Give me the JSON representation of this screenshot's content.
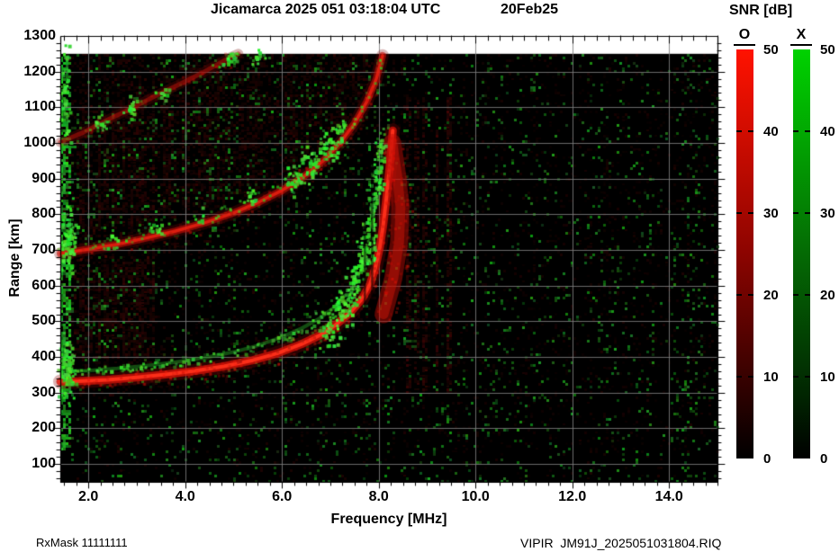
{
  "title": {
    "left": "Jicamarca 2025 051 03:18:04 UTC",
    "right": "20Feb25"
  },
  "footer": {
    "left": "RxMask 11111111",
    "right": "VIPIR  JM91J_2025051031804.RIQ"
  },
  "chart_data": {
    "type": "heatmap",
    "title": "Jicamarca 2025 051 03:18:04 UTC  20Feb25",
    "xlabel": "Frequency [MHz]",
    "ylabel": "Range [km]",
    "xlim": [
      1.42,
      15.0
    ],
    "ylim": [
      50,
      1300
    ],
    "grid": {
      "color": "#7e7e7e",
      "x_every_mhz": 2,
      "y_every_km": 100
    },
    "background": "#000000",
    "x_ticks": [
      {
        "v": 2,
        "label": "2.0"
      },
      {
        "v": 4,
        "label": "4.0"
      },
      {
        "v": 6,
        "label": "6.0"
      },
      {
        "v": 8,
        "label": "8.0"
      },
      {
        "v": 10,
        "label": "10.0"
      },
      {
        "v": 12,
        "label": "12.0"
      },
      {
        "v": 14,
        "label": "14.0"
      }
    ],
    "y_ticks": [
      {
        "v": 1300,
        "label": "1300"
      },
      {
        "v": 1200,
        "label": "1200"
      },
      {
        "v": 1100,
        "label": "1100"
      },
      {
        "v": 1000,
        "label": "1000"
      },
      {
        "v": 900,
        "label": "900"
      },
      {
        "v": 800,
        "label": "800"
      },
      {
        "v": 700,
        "label": "700"
      },
      {
        "v": 600,
        "label": "600"
      },
      {
        "v": 500,
        "label": "500"
      },
      {
        "v": 400,
        "label": "400"
      },
      {
        "v": 300,
        "label": "300"
      },
      {
        "v": 200,
        "label": "200"
      },
      {
        "v": 100,
        "label": "100"
      }
    ],
    "colorbar": {
      "title": "SNR [dB]",
      "o_label": "O",
      "x_label": "X",
      "min": 0,
      "max": 50,
      "ticks": [
        50,
        40,
        30,
        20,
        10,
        0
      ],
      "o_color_top": "#ff1200",
      "x_color_top": "#00d200"
    },
    "series": [
      {
        "name": "O-mode 1st hop",
        "color": "#e03020",
        "points": [
          [
            1.42,
            331
          ],
          [
            1.8,
            332
          ],
          [
            2.4,
            336
          ],
          [
            3.0,
            343
          ],
          [
            3.6,
            351
          ],
          [
            4.2,
            361
          ],
          [
            4.8,
            374
          ],
          [
            5.4,
            391
          ],
          [
            5.9,
            410
          ],
          [
            6.4,
            436
          ],
          [
            6.8,
            462
          ],
          [
            7.1,
            489
          ],
          [
            7.4,
            523
          ],
          [
            7.65,
            562
          ],
          [
            7.82,
            604
          ],
          [
            7.93,
            650
          ],
          [
            8.02,
            706
          ],
          [
            8.09,
            768
          ],
          [
            8.15,
            836
          ],
          [
            8.21,
            912
          ],
          [
            8.26,
            985
          ],
          [
            8.29,
            1035
          ]
        ]
      },
      {
        "name": "X-mode 1st hop",
        "color": "#35c43a",
        "points": [
          [
            1.42,
            360
          ],
          [
            2.0,
            362
          ],
          [
            2.6,
            368
          ],
          [
            3.2,
            376
          ],
          [
            3.8,
            386
          ],
          [
            4.4,
            398
          ],
          [
            5.0,
            414
          ],
          [
            5.5,
            432
          ],
          [
            6.0,
            456
          ],
          [
            6.4,
            480
          ],
          [
            6.75,
            506
          ],
          [
            7.05,
            536
          ],
          [
            7.3,
            572
          ],
          [
            7.5,
            614
          ],
          [
            7.65,
            660
          ],
          [
            7.75,
            712
          ],
          [
            7.83,
            775
          ],
          [
            7.9,
            845
          ],
          [
            7.97,
            925
          ],
          [
            8.03,
            1000
          ],
          [
            8.07,
            1045
          ]
        ]
      },
      {
        "name": "O-mode 2nd hop",
        "color": "#c01810",
        "points": [
          [
            1.42,
            690
          ],
          [
            2.0,
            702
          ],
          [
            2.6,
            716
          ],
          [
            3.2,
            734
          ],
          [
            3.8,
            753
          ],
          [
            4.4,
            776
          ],
          [
            5.0,
            804
          ],
          [
            5.5,
            833
          ],
          [
            6.0,
            867
          ],
          [
            6.45,
            906
          ],
          [
            6.85,
            950
          ],
          [
            7.2,
            1000
          ],
          [
            7.5,
            1055
          ],
          [
            7.75,
            1115
          ],
          [
            7.95,
            1180
          ],
          [
            8.08,
            1245
          ]
        ]
      },
      {
        "name": "O-mode 3rd hop",
        "color": "#a01410",
        "points": [
          [
            1.42,
            1002
          ],
          [
            1.9,
            1030
          ],
          [
            2.4,
            1065
          ],
          [
            2.9,
            1098
          ],
          [
            3.4,
            1133
          ],
          [
            3.9,
            1166
          ],
          [
            4.4,
            1200
          ],
          [
            4.9,
            1238
          ],
          [
            5.1,
            1250
          ]
        ]
      }
    ],
    "green_clusters": [
      {
        "f": 6.95,
        "km": 482,
        "rx": 14,
        "ry": 26,
        "n": 45
      },
      {
        "f": 7.25,
        "km": 540,
        "rx": 12,
        "ry": 22,
        "n": 40
      },
      {
        "f": 7.5,
        "km": 600,
        "rx": 10,
        "ry": 24,
        "n": 38
      },
      {
        "f": 7.66,
        "km": 665,
        "rx": 9,
        "ry": 26,
        "n": 34
      },
      {
        "f": 7.78,
        "km": 730,
        "rx": 8,
        "ry": 28,
        "n": 30
      },
      {
        "f": 7.87,
        "km": 810,
        "rx": 7,
        "ry": 30,
        "n": 26
      },
      {
        "f": 7.95,
        "km": 900,
        "rx": 7,
        "ry": 30,
        "n": 22
      },
      {
        "f": 8.02,
        "km": 990,
        "rx": 6,
        "ry": 26,
        "n": 16
      },
      {
        "f": 6.2,
        "km": 905,
        "rx": 12,
        "ry": 20,
        "n": 30
      },
      {
        "f": 6.55,
        "km": 945,
        "rx": 13,
        "ry": 22,
        "n": 35
      },
      {
        "f": 6.9,
        "km": 992,
        "rx": 12,
        "ry": 20,
        "n": 30
      },
      {
        "f": 7.2,
        "km": 1040,
        "rx": 10,
        "ry": 18,
        "n": 22
      },
      {
        "f": 5.35,
        "km": 850,
        "rx": 8,
        "ry": 12,
        "n": 12
      },
      {
        "f": 4.3,
        "km": 792,
        "rx": 7,
        "ry": 10,
        "n": 10
      },
      {
        "f": 3.35,
        "km": 762,
        "rx": 8,
        "ry": 10,
        "n": 12
      },
      {
        "f": 2.5,
        "km": 728,
        "rx": 7,
        "ry": 10,
        "n": 10
      },
      {
        "f": 1.55,
        "km": 730,
        "rx": 10,
        "ry": 45,
        "n": 80
      },
      {
        "f": 1.55,
        "km": 370,
        "rx": 9,
        "ry": 40,
        "n": 80
      },
      {
        "f": 1.5,
        "km": 1150,
        "rx": 8,
        "ry": 60,
        "n": 40
      },
      {
        "f": 2.25,
        "km": 1052,
        "rx": 8,
        "ry": 12,
        "n": 14
      },
      {
        "f": 2.9,
        "km": 1100,
        "rx": 10,
        "ry": 14,
        "n": 18
      },
      {
        "f": 3.5,
        "km": 1142,
        "rx": 8,
        "ry": 10,
        "n": 12
      },
      {
        "f": 4.95,
        "km": 1238,
        "rx": 12,
        "ry": 10,
        "n": 16
      },
      {
        "f": 5.5,
        "km": 1240,
        "rx": 8,
        "ry": 8,
        "n": 12
      }
    ],
    "render_hints": {
      "data_top_km": 1250,
      "noise_seed": 1234,
      "red_streaks_mhz": [
        8.62,
        8.8,
        8.97,
        9.2,
        9.45
      ],
      "rfi_dark_mhz": [
        7.71,
        7.86
      ],
      "left_edge_green_max_mhz": 1.66,
      "spread_ridge": [
        [
          8.1,
          520
        ],
        [
          8.3,
          620
        ],
        [
          8.42,
          720
        ],
        [
          8.45,
          820
        ],
        [
          8.38,
          910
        ],
        [
          8.28,
          1000
        ]
      ]
    }
  }
}
